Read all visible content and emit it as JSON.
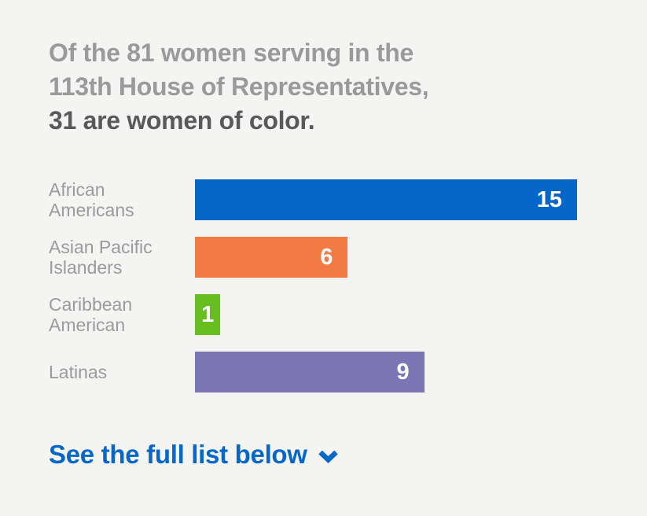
{
  "page": {
    "background": "#F4F4F2"
  },
  "title": {
    "line1": "Of the 81 women serving in the",
    "line2": "113th House of Representatives,",
    "line3": "31 are women of color.",
    "muted_color": "#9A9A9A",
    "emphasis_color": "#58595B"
  },
  "chart_data": {
    "type": "bar",
    "orientation": "horizontal",
    "title": "Of the 81 women serving in the 113th House of Representatives, 31 are women of color.",
    "categories": [
      "African Americans",
      "Asian Pacific Islanders",
      "Caribbean American",
      "Latinas"
    ],
    "values": [
      15,
      6,
      1,
      9
    ],
    "colors": [
      "#0666C8",
      "#F27B44",
      "#68BE20",
      "#7C76B5"
    ],
    "xlim": [
      0,
      15
    ],
    "grid": false,
    "value_label_position": "inside-end",
    "value_label_color": "#FFFFFF",
    "category_label_color": "#9B9B9B"
  },
  "footer_link": {
    "label": "See the full list below",
    "icon": "chevron-down",
    "color": "#0667C8"
  }
}
